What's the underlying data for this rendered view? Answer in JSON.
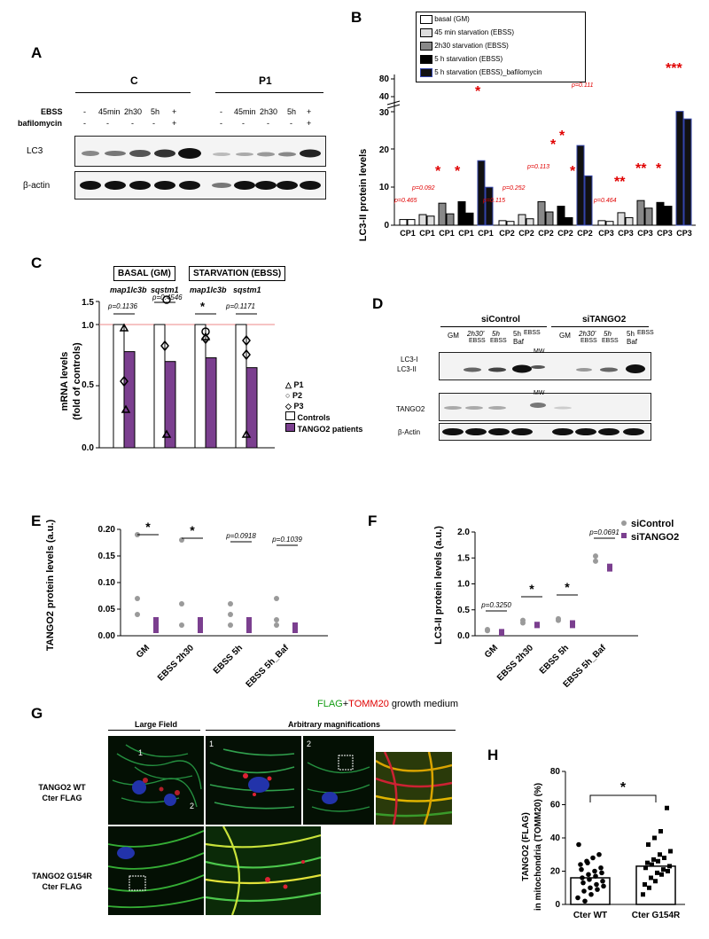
{
  "panels": {
    "A": "A",
    "B": "B",
    "C": "C",
    "D": "D",
    "E": "E",
    "F": "F",
    "G": "G",
    "H": "H"
  },
  "panelA": {
    "group_C": "C",
    "group_P1": "P1",
    "row_EBSS": "EBSS",
    "row_baf": "bafilomycin",
    "ebss_C": [
      "-",
      "45min",
      "2h30",
      "5h",
      "+"
    ],
    "ebss_P1": [
      "-",
      "45min",
      "2h30",
      "5h",
      "+"
    ],
    "baf_C": [
      "-",
      "-",
      "-",
      "-",
      "+"
    ],
    "baf_P1": [
      "-",
      "-",
      "-",
      "-",
      "+"
    ],
    "blot_LC3": "LC3",
    "blot_actin": "β-actin"
  },
  "panelB": {
    "legend": [
      "basal (GM)",
      "45 min starvation (EBSS)",
      "2h30 starvation (EBSS)",
      "5 h starvation (EBSS)",
      "5 h starvation (EBSS)_bafilomycin"
    ],
    "ylabel": "LC3-II protein levels",
    "yticks_low": [
      "0",
      "10",
      "20",
      "30"
    ],
    "yticks_high": [
      "40",
      "80"
    ],
    "pvals": [
      "p=0.465",
      "p=0.092",
      "p=0.115",
      "p=0.252",
      "p=0.113",
      "p=0.111",
      "p=0.464"
    ],
    "stars": [
      "*",
      "*",
      "*",
      "*",
      "*",
      "*",
      "**",
      "**",
      "*",
      "***"
    ],
    "xgroups": [
      "CP1",
      "CP2",
      "CP3"
    ]
  },
  "panelC": {
    "header_basal": "BASAL (GM)",
    "header_starv": "STARVATION (EBSS)",
    "genes": [
      "map1lc3b",
      "sqstm1",
      "map1lc3b",
      "sqstm1"
    ],
    "ylabel1": "mRNA levels",
    "ylabel2": "(fold of controls)",
    "yticks": [
      "0.0",
      "0.5",
      "1.0",
      "1.5"
    ],
    "pvals": [
      "p=0.1136",
      "p=0.4546",
      "*",
      "p=0.1171"
    ],
    "legend": [
      "P1",
      "P2",
      "P3",
      "Controls",
      "TANGO2 patients"
    ],
    "chart_data": {
      "type": "bar",
      "categories": [
        "map1lc3b (GM)",
        "sqstm1 (GM)",
        "map1lc3b (EBSS)",
        "sqstm1 (EBSS)"
      ],
      "series": [
        {
          "name": "Controls",
          "values": [
            1.0,
            1.0,
            1.0,
            1.0
          ]
        },
        {
          "name": "TANGO2 patients",
          "values": [
            0.78,
            0.7,
            0.73,
            0.65
          ]
        }
      ],
      "ylim": [
        0,
        1.5
      ]
    }
  },
  "panelD": {
    "siControl": "siControl",
    "siTANGO2": "siTANGO2",
    "lanes": [
      "GM",
      "2h30'",
      "5h",
      "5h"
    ],
    "lane_sub": [
      "",
      "EBSS",
      "EBSS",
      "Baf"
    ],
    "ebss": "EBSS",
    "mw": "MW",
    "labels": [
      "LC3-I",
      "LC3-II",
      "TANGO2",
      "β-Actin"
    ]
  },
  "panelE": {
    "ylabel": "TANGO2 protein levels (a.u.)",
    "yticks": [
      "0.00",
      "0.05",
      "0.10",
      "0.15",
      "0.20"
    ],
    "xcats": [
      "GM",
      "EBSS 2h30",
      "EBSS 5h",
      "EBSS 5h_Baf"
    ],
    "marks": [
      "*",
      "*",
      "p=0.0918",
      "p=0.1039"
    ]
  },
  "panelF": {
    "ylabel": "LC3-II protein levels (a.u.)",
    "yticks": [
      "0.0",
      "0.5",
      "1.0",
      "1.5",
      "2.0"
    ],
    "xcats": [
      "GM",
      "EBSS 2h30",
      "EBSS 5h",
      "EBSS 5h_Baf"
    ],
    "marks": [
      "p=0.3250",
      "*",
      "*",
      "p=0.0691"
    ],
    "legend": [
      "siControl",
      "siTANGO2"
    ]
  },
  "panelG": {
    "title_flag": "FLAG",
    "title_plus": "+",
    "title_tomm": "TOMM20",
    "title_rest": " growth medium",
    "large_field": "Large Field",
    "arbitrary": "Arbitrary magnifications",
    "row1": [
      "TANGO2 WT",
      "Cter FLAG"
    ],
    "row2": [
      "TANGO2 G154R",
      "Cter FLAG"
    ],
    "num1": "1",
    "num2": "2"
  },
  "panelH": {
    "ylabel1": "TANGO2 (FLAG)",
    "ylabel2": "in mitochondria (TOMM20) (%)",
    "yticks": [
      "0",
      "20",
      "40",
      "60",
      "80"
    ],
    "xcats": [
      "Cter WT",
      "Cter G154R"
    ],
    "star": "*",
    "chart_data": {
      "type": "bar",
      "categories": [
        "Cter WT",
        "Cter G154R"
      ],
      "values": [
        16,
        23
      ],
      "ylim": [
        0,
        80
      ]
    }
  },
  "colors": {
    "purple": "#7b3f8f",
    "red": "#e00000",
    "grey": "#9a9a9a",
    "navy": "#1a1a66"
  }
}
